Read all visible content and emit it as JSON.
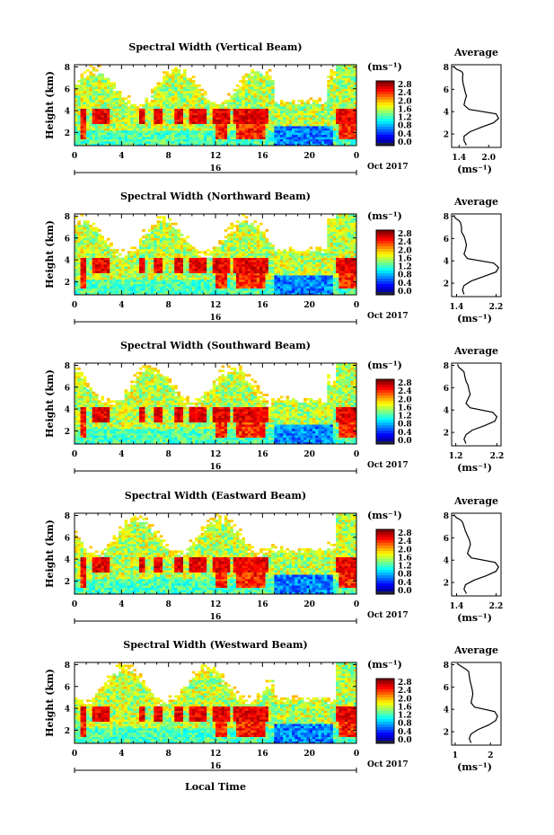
{
  "figure": {
    "xlabel": "Local Time",
    "xticks": [
      "0",
      "4",
      "8",
      "12",
      "16",
      "20",
      "0"
    ],
    "date_tick": "16",
    "date_label": "Oct 2017",
    "ylabel": "Height (km)",
    "yticks": [
      "2",
      "4",
      "6",
      "8"
    ],
    "colorbar_unit": "(ms⁻¹)",
    "colorbar_ticks": [
      "2.8",
      "2.4",
      "2.0",
      "1.6",
      "1.2",
      "0.8",
      "0.4",
      "0.0"
    ],
    "avg_title": "Average",
    "avg_unit": "(ms⁻¹)",
    "colors": {
      "high": "#e8412c",
      "mid": "#7fe0a0",
      "low": "#1e3cc8",
      "missing": "#ffffff"
    }
  },
  "chart_data": [
    {
      "type": "heatmap",
      "title": "Spectral Width (Vertical Beam)",
      "xlim": [
        0,
        24
      ],
      "ylim": [
        0.8,
        8.2
      ],
      "colorbar_ticks": [
        "2.8",
        "2.4",
        "2.0",
        "1.6",
        "1.2",
        "0.8",
        "0.4",
        "0.0"
      ],
      "avg_xticks": [
        "1.4",
        "2.0"
      ],
      "average_profile": {
        "xlim": [
          1.25,
          2.25
        ],
        "x": [
          1.55,
          1.5,
          1.5,
          1.62,
          1.85,
          2.1,
          2.2,
          2.15,
          1.6,
          1.5,
          1.52,
          1.55,
          1.52,
          1.5,
          1.48,
          1.47,
          1.48,
          1.45,
          1.35,
          1.3,
          1.3
        ],
        "height_km": [
          1.0,
          1.4,
          1.8,
          2.2,
          2.6,
          3.0,
          3.4,
          3.8,
          4.2,
          4.6,
          5.0,
          5.4,
          5.8,
          6.2,
          6.6,
          7.0,
          7.4,
          7.6,
          7.8,
          8.0,
          8.1
        ]
      }
    },
    {
      "type": "heatmap",
      "title": "Spectral Width (Northward Beam)",
      "xlim": [
        0,
        24
      ],
      "ylim": [
        0.8,
        8.2
      ],
      "colorbar_ticks": [
        "2.8",
        "2.4",
        "2.0",
        "1.6",
        "1.2",
        "0.8",
        "0.4",
        "0.0"
      ],
      "avg_xticks": [
        "1.4",
        "2.2"
      ],
      "average_profile": {
        "xlim": [
          1.3,
          2.3
        ],
        "x": [
          1.55,
          1.52,
          1.55,
          1.7,
          1.95,
          2.2,
          2.25,
          2.15,
          1.62,
          1.55,
          1.58,
          1.6,
          1.58,
          1.55,
          1.5,
          1.5,
          1.48,
          1.45,
          1.38,
          1.35,
          1.35
        ],
        "height_km": [
          1.0,
          1.4,
          1.8,
          2.2,
          2.6,
          3.0,
          3.4,
          3.8,
          4.2,
          4.6,
          5.0,
          5.4,
          5.8,
          6.2,
          6.6,
          7.0,
          7.4,
          7.6,
          7.8,
          8.0,
          8.1
        ]
      }
    },
    {
      "type": "heatmap",
      "title": "Spectral Width (Southward Beam)",
      "xlim": [
        0,
        24
      ],
      "ylim": [
        0.8,
        8.2
      ],
      "colorbar_ticks": [
        "2.8",
        "2.4",
        "2.0",
        "1.6",
        "1.2",
        "0.8",
        "0.4",
        "0.0"
      ],
      "avg_xticks": [
        "1.2",
        "2.2"
      ],
      "average_profile": {
        "xlim": [
          1.1,
          2.3
        ],
        "x": [
          1.45,
          1.4,
          1.45,
          1.6,
          1.9,
          2.15,
          2.2,
          2.1,
          1.55,
          1.45,
          1.5,
          1.55,
          1.52,
          1.5,
          1.45,
          1.42,
          1.4,
          1.35,
          1.28,
          1.25,
          1.25
        ],
        "height_km": [
          1.0,
          1.4,
          1.8,
          2.2,
          2.6,
          3.0,
          3.4,
          3.8,
          4.2,
          4.6,
          5.0,
          5.4,
          5.8,
          6.2,
          6.6,
          7.0,
          7.4,
          7.6,
          7.8,
          8.0,
          8.1
        ]
      }
    },
    {
      "type": "heatmap",
      "title": "Spectral Width (Eastward Beam)",
      "xlim": [
        0,
        24
      ],
      "ylim": [
        0.8,
        8.2
      ],
      "colorbar_ticks": [
        "2.8",
        "2.4",
        "2.0",
        "1.6",
        "1.2",
        "0.8",
        "0.4",
        "0.0"
      ],
      "avg_xticks": [
        "1.4",
        "2.2"
      ],
      "average_profile": {
        "xlim": [
          1.3,
          2.3
        ],
        "x": [
          1.6,
          1.55,
          1.58,
          1.75,
          2.0,
          2.2,
          2.25,
          2.18,
          1.7,
          1.62,
          1.65,
          1.68,
          1.66,
          1.62,
          1.58,
          1.55,
          1.52,
          1.48,
          1.4,
          1.35,
          1.35
        ],
        "height_km": [
          1.0,
          1.4,
          1.8,
          2.2,
          2.6,
          3.0,
          3.4,
          3.8,
          4.2,
          4.6,
          5.0,
          5.4,
          5.8,
          6.2,
          6.6,
          7.0,
          7.4,
          7.6,
          7.8,
          8.0,
          8.1
        ]
      }
    },
    {
      "type": "heatmap",
      "title": "Spectral Width (Westward Beam)",
      "xlim": [
        0,
        24
      ],
      "ylim": [
        0.8,
        8.2
      ],
      "colorbar_ticks": [
        "2.8",
        "2.4",
        "2.0",
        "1.6",
        "1.2",
        "0.8",
        "0.4",
        "0.0"
      ],
      "avg_xticks": [
        "1",
        "2"
      ],
      "average_profile": {
        "xlim": [
          0.9,
          2.3
        ],
        "x": [
          1.45,
          1.4,
          1.45,
          1.65,
          1.95,
          2.15,
          2.2,
          2.12,
          1.55,
          1.45,
          1.48,
          1.5,
          1.48,
          1.45,
          1.42,
          1.4,
          1.38,
          1.3,
          1.2,
          1.1,
          1.05
        ],
        "height_km": [
          1.0,
          1.4,
          1.8,
          2.2,
          2.6,
          3.0,
          3.4,
          3.8,
          4.2,
          4.6,
          5.0,
          5.4,
          5.8,
          6.2,
          6.6,
          7.0,
          7.4,
          7.6,
          7.8,
          8.0,
          8.1
        ]
      }
    }
  ]
}
